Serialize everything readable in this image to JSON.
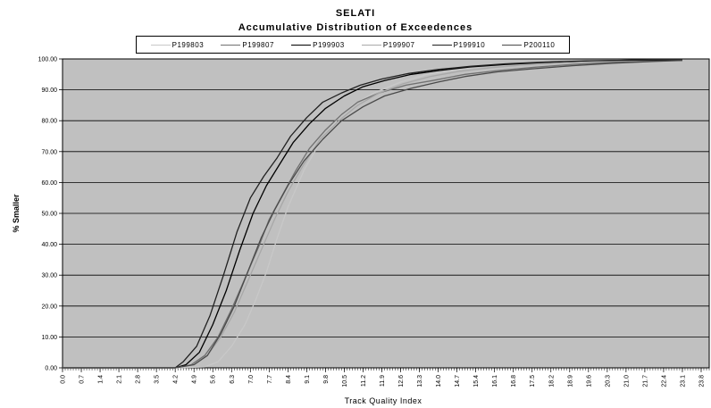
{
  "chart_data": {
    "type": "line",
    "title": "SELATI",
    "subtitle": "Accumulative Distribution of Exceedences",
    "xlabel": "Track Quality Index",
    "ylabel": "% Smaller",
    "ylim": [
      0,
      100
    ],
    "xlim": [
      0,
      24.1
    ],
    "grid": true,
    "legend_position": "top",
    "plot_background": "#c0c0c0",
    "y_ticks": [
      "0.00",
      "10.00",
      "20.00",
      "30.00",
      "40.00",
      "50.00",
      "60.00",
      "70.00",
      "80.00",
      "90.00",
      "100.00"
    ],
    "x_ticks": [
      "0.0",
      "0.7",
      "1.4",
      "2.1",
      "2.8",
      "3.5",
      "4.2",
      "4.9",
      "5.6",
      "6.3",
      "7.0",
      "7.7",
      "8.4",
      "9.1",
      "9.8",
      "10.5",
      "11.2",
      "11.9",
      "12.6",
      "13.3",
      "14.0",
      "14.7",
      "15.4",
      "16.1",
      "16.8",
      "17.5",
      "18.2",
      "18.9",
      "19.6",
      "20.3",
      "21.0",
      "21.7",
      "22.4",
      "23.1",
      "23.8"
    ],
    "series": [
      {
        "name": "P199803",
        "color": "#c8c8c8",
        "x": [
          0,
          4.2,
          5.3,
          5.8,
          6.3,
          6.8,
          7.2,
          7.6,
          8.0,
          8.4,
          9.0,
          9.6,
          10.2,
          10.8,
          11.6,
          12.6,
          13.6,
          14.6,
          15.8,
          17.0,
          18.5,
          20.0,
          21.5,
          23.1
        ],
        "y": [
          0,
          0,
          0.3,
          2,
          7,
          14,
          22,
          31,
          42,
          52,
          64,
          73,
          80,
          85,
          89,
          92.5,
          95,
          96.5,
          97.8,
          98.5,
          99,
          99.3,
          99.6,
          99.5
        ]
      },
      {
        "name": "P199807",
        "color": "#707070",
        "x": [
          0,
          4.2,
          4.8,
          5.3,
          5.8,
          6.3,
          6.8,
          7.3,
          7.7,
          8.2,
          8.7,
          9.2,
          9.8,
          10.4,
          11.0,
          11.8,
          12.8,
          13.8,
          15.0,
          16.2,
          17.6,
          19.0,
          20.5,
          22.0,
          23.1
        ],
        "y": [
          0,
          0,
          1,
          4,
          10,
          19,
          29,
          39,
          48,
          56,
          64,
          71,
          77,
          82,
          86,
          89,
          91.5,
          93,
          95,
          96.2,
          97.3,
          98.2,
          98.9,
          99.4,
          99.5
        ]
      },
      {
        "name": "P199903",
        "color": "#000000",
        "x": [
          0,
          4.2,
          4.6,
          5.1,
          5.6,
          6.1,
          6.6,
          7.1,
          7.6,
          8.1,
          8.6,
          9.2,
          9.8,
          10.5,
          11.2,
          12.0,
          13.0,
          14.0,
          15.2,
          16.5,
          18.0,
          19.6,
          21.2,
          23.1
        ],
        "y": [
          0,
          0,
          1,
          5,
          14,
          25,
          38,
          50,
          59,
          66,
          73,
          79,
          84,
          88,
          91,
          93,
          95,
          96.2,
          97.4,
          98.2,
          98.9,
          99.3,
          99.6,
          99.6
        ]
      },
      {
        "name": "P199907",
        "color": "#a8a8a8",
        "x": [
          0,
          4.2,
          4.9,
          5.4,
          5.9,
          6.4,
          6.9,
          7.4,
          7.9,
          8.4,
          9.0,
          9.6,
          10.3,
          11.0,
          11.8,
          12.7,
          13.7,
          14.8,
          16.0,
          17.3,
          18.8,
          20.4,
          22.0,
          23.1
        ],
        "y": [
          0,
          0,
          1,
          4,
          10,
          18,
          28,
          38,
          48,
          57,
          66,
          74,
          80,
          85,
          89,
          92,
          94.3,
          96,
          97.2,
          98.1,
          98.8,
          99.3,
          99.6,
          99.6
        ]
      },
      {
        "name": "P199910",
        "color": "#202020",
        "x": [
          0,
          4.2,
          4.5,
          5.0,
          5.5,
          6.0,
          6.5,
          7.0,
          7.5,
          8.0,
          8.5,
          9.1,
          9.7,
          10.4,
          11.1,
          11.9,
          12.9,
          14.0,
          15.2,
          16.5,
          18.0,
          19.6,
          21.2,
          23.1
        ],
        "y": [
          0,
          0,
          2,
          7,
          17,
          30,
          44,
          55,
          62,
          68,
          75,
          81,
          86,
          89,
          91.5,
          93.5,
          95.3,
          96.6,
          97.6,
          98.4,
          99,
          99.4,
          99.6,
          99.6
        ]
      },
      {
        "name": "P200110",
        "color": "#4a4a4a",
        "x": [
          0,
          4.2,
          4.9,
          5.4,
          5.9,
          6.4,
          6.9,
          7.4,
          7.9,
          8.4,
          9.0,
          9.7,
          10.4,
          11.2,
          12.0,
          13.0,
          14.0,
          15.0,
          16.2,
          17.5,
          19.0,
          20.5,
          22.0,
          23.1
        ],
        "y": [
          0,
          0,
          1,
          4,
          11,
          20,
          31,
          42,
          51,
          59,
          67,
          74,
          80,
          84.5,
          88,
          90.5,
          92.5,
          94.3,
          95.8,
          96.8,
          97.8,
          98.6,
          99.2,
          99.5
        ]
      }
    ]
  }
}
